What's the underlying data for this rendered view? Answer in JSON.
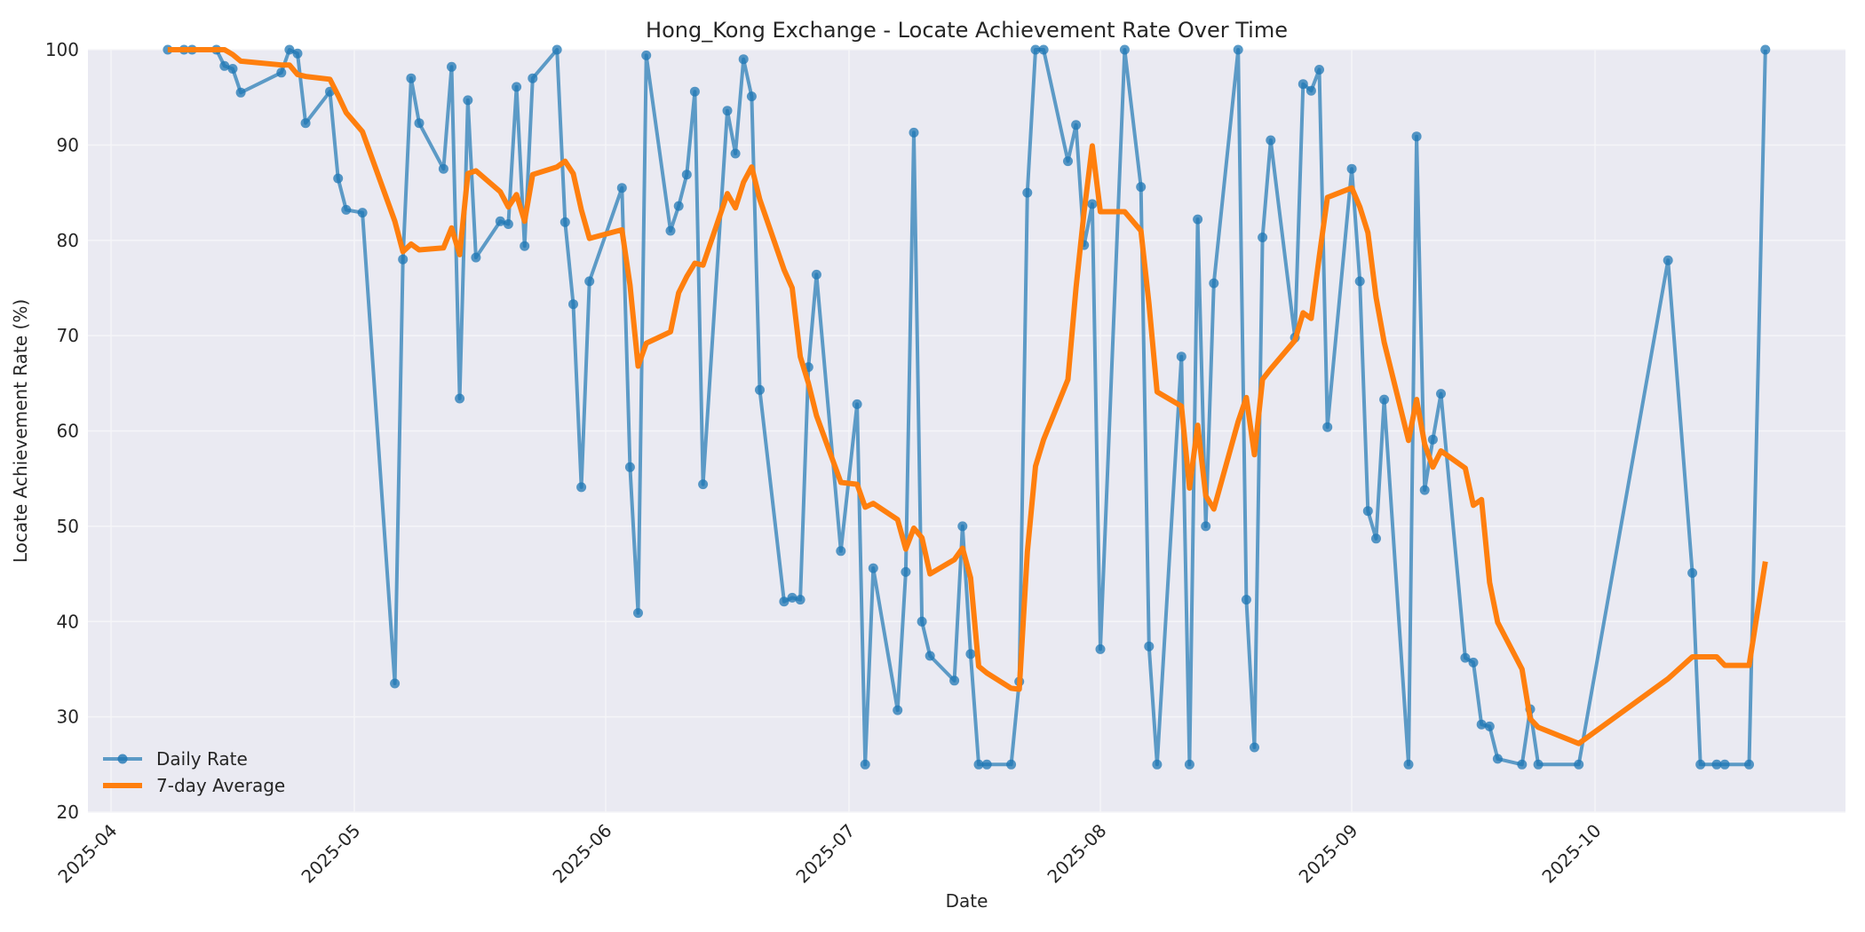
{
  "chart_data": {
    "type": "line",
    "title": "Hong_Kong Exchange - Locate Achievement Rate Over Time",
    "xlabel": "Date",
    "ylabel": "Locate Achievement Rate (%)",
    "ylim": [
      20,
      100
    ],
    "yticks": [
      20,
      30,
      40,
      50,
      60,
      70,
      80,
      90,
      100
    ],
    "xlim": [
      "2025-03-28",
      "2025-10-31"
    ],
    "xticks": [
      "2025-04",
      "2025-05",
      "2025-06",
      "2025-07",
      "2025-08",
      "2025-09",
      "2025-10"
    ],
    "xtick_dates": [
      "2025-04-01",
      "2025-05-01",
      "2025-06-01",
      "2025-07-01",
      "2025-08-01",
      "2025-09-01",
      "2025-10-01"
    ],
    "grid": true,
    "legend_position": "lower left",
    "series": [
      {
        "name": "Daily Rate",
        "color": "#1f77b4",
        "style": "line-with-markers",
        "x": [
          "2025-04-08",
          "2025-04-10",
          "2025-04-11",
          "2025-04-14",
          "2025-04-15",
          "2025-04-16",
          "2025-04-17",
          "2025-04-22",
          "2025-04-23",
          "2025-04-24",
          "2025-04-25",
          "2025-04-28",
          "2025-04-29",
          "2025-04-30",
          "2025-05-02",
          "2025-05-06",
          "2025-05-07",
          "2025-05-08",
          "2025-05-09",
          "2025-05-12",
          "2025-05-13",
          "2025-05-14",
          "2025-05-15",
          "2025-05-16",
          "2025-05-19",
          "2025-05-20",
          "2025-05-21",
          "2025-05-22",
          "2025-05-23",
          "2025-05-26",
          "2025-05-27",
          "2025-05-28",
          "2025-05-29",
          "2025-05-30",
          "2025-06-03",
          "2025-06-04",
          "2025-06-05",
          "2025-06-06",
          "2025-06-09",
          "2025-06-10",
          "2025-06-11",
          "2025-06-12",
          "2025-06-13",
          "2025-06-16",
          "2025-06-17",
          "2025-06-18",
          "2025-06-19",
          "2025-06-20",
          "2025-06-23",
          "2025-06-24",
          "2025-06-25",
          "2025-06-26",
          "2025-06-27",
          "2025-06-30",
          "2025-07-02",
          "2025-07-03",
          "2025-07-04",
          "2025-07-07",
          "2025-07-08",
          "2025-07-09",
          "2025-07-10",
          "2025-07-11",
          "2025-07-14",
          "2025-07-15",
          "2025-07-16",
          "2025-07-17",
          "2025-07-18",
          "2025-07-21",
          "2025-07-22",
          "2025-07-23",
          "2025-07-24",
          "2025-07-25",
          "2025-07-28",
          "2025-07-29",
          "2025-07-30",
          "2025-07-31",
          "2025-08-01",
          "2025-08-04",
          "2025-08-06",
          "2025-08-07",
          "2025-08-08",
          "2025-08-11",
          "2025-08-12",
          "2025-08-13",
          "2025-08-14",
          "2025-08-15",
          "2025-08-18",
          "2025-08-19",
          "2025-08-20",
          "2025-08-21",
          "2025-08-22",
          "2025-08-25",
          "2025-08-26",
          "2025-08-27",
          "2025-08-28",
          "2025-08-29",
          "2025-09-01",
          "2025-09-02",
          "2025-09-03",
          "2025-09-04",
          "2025-09-05",
          "2025-09-08",
          "2025-09-09",
          "2025-09-10",
          "2025-09-11",
          "2025-09-12",
          "2025-09-15",
          "2025-09-16",
          "2025-09-17",
          "2025-09-18",
          "2025-09-19",
          "2025-09-22",
          "2025-09-23",
          "2025-09-24",
          "2025-09-29",
          "2025-10-10",
          "2025-10-13",
          "2025-10-14",
          "2025-10-16",
          "2025-10-17",
          "2025-10-20",
          "2025-10-22"
        ],
        "values": [
          100,
          100,
          100,
          100,
          98.3,
          98.0,
          95.5,
          97.6,
          100,
          99.6,
          92.3,
          95.6,
          86.5,
          83.2,
          82.9,
          33.5,
          78.0,
          97.0,
          92.3,
          87.5,
          98.2,
          63.4,
          94.7,
          78.2,
          82.0,
          81.7,
          96.1,
          79.4,
          97.0,
          100,
          81.9,
          73.3,
          54.1,
          75.7,
          85.5,
          56.2,
          40.9,
          99.4,
          81.0,
          83.6,
          86.9,
          95.6,
          54.4,
          93.6,
          89.1,
          99.0,
          95.1,
          64.3,
          42.1,
          42.5,
          42.3,
          66.7,
          76.4,
          47.4,
          62.8,
          25.0,
          45.6,
          30.7,
          45.2,
          91.3,
          40.0,
          36.4,
          33.8,
          50.0,
          36.6,
          25.0,
          25.0,
          25.0,
          33.7,
          85.0,
          100,
          100,
          88.3,
          92.1,
          79.5,
          83.8,
          37.1,
          100,
          85.6,
          37.4,
          25.0,
          67.8,
          25.0,
          82.2,
          50.0,
          75.5,
          100,
          42.3,
          26.8,
          80.3,
          90.5,
          69.8,
          96.4,
          95.7,
          97.9,
          60.4,
          87.5,
          75.7,
          51.6,
          48.7,
          63.3,
          25.0,
          90.9,
          53.8,
          59.1,
          63.9,
          36.2,
          35.7,
          29.2,
          29.0,
          25.6,
          25.0,
          30.8,
          25.0,
          25.0,
          77.9,
          45.1,
          25.0,
          25.0,
          25.0,
          25.0,
          100
        ]
      },
      {
        "name": "7-day Average",
        "color": "#ff7f0e",
        "style": "thick-line",
        "x": [
          "2025-04-08",
          "2025-04-10",
          "2025-04-11",
          "2025-04-14",
          "2025-04-15",
          "2025-04-16",
          "2025-04-17",
          "2025-04-22",
          "2025-04-23",
          "2025-04-24",
          "2025-04-25",
          "2025-04-28",
          "2025-04-29",
          "2025-04-30",
          "2025-05-02",
          "2025-05-06",
          "2025-05-07",
          "2025-05-08",
          "2025-05-09",
          "2025-05-12",
          "2025-05-13",
          "2025-05-14",
          "2025-05-15",
          "2025-05-16",
          "2025-05-19",
          "2025-05-20",
          "2025-05-21",
          "2025-05-22",
          "2025-05-23",
          "2025-05-26",
          "2025-05-27",
          "2025-05-28",
          "2025-05-29",
          "2025-05-30",
          "2025-06-03",
          "2025-06-04",
          "2025-06-05",
          "2025-06-06",
          "2025-06-09",
          "2025-06-10",
          "2025-06-11",
          "2025-06-12",
          "2025-06-13",
          "2025-06-16",
          "2025-06-17",
          "2025-06-18",
          "2025-06-19",
          "2025-06-20",
          "2025-06-23",
          "2025-06-24",
          "2025-06-25",
          "2025-06-26",
          "2025-06-27",
          "2025-06-30",
          "2025-07-02",
          "2025-07-03",
          "2025-07-04",
          "2025-07-07",
          "2025-07-08",
          "2025-07-09",
          "2025-07-10",
          "2025-07-11",
          "2025-07-14",
          "2025-07-15",
          "2025-07-16",
          "2025-07-17",
          "2025-07-18",
          "2025-07-21",
          "2025-07-22",
          "2025-07-23",
          "2025-07-24",
          "2025-07-25",
          "2025-07-28",
          "2025-07-29",
          "2025-07-30",
          "2025-07-31",
          "2025-08-01",
          "2025-08-04",
          "2025-08-06",
          "2025-08-07",
          "2025-08-08",
          "2025-08-11",
          "2025-08-12",
          "2025-08-13",
          "2025-08-14",
          "2025-08-15",
          "2025-08-18",
          "2025-08-19",
          "2025-08-20",
          "2025-08-21",
          "2025-08-22",
          "2025-08-25",
          "2025-08-26",
          "2025-08-27",
          "2025-08-28",
          "2025-08-29",
          "2025-09-01",
          "2025-09-02",
          "2025-09-03",
          "2025-09-04",
          "2025-09-05",
          "2025-09-08",
          "2025-09-09",
          "2025-09-10",
          "2025-09-11",
          "2025-09-12",
          "2025-09-15",
          "2025-09-16",
          "2025-09-17",
          "2025-09-18",
          "2025-09-19",
          "2025-09-22",
          "2025-09-23",
          "2025-09-24",
          "2025-09-29",
          "2025-10-10",
          "2025-10-13",
          "2025-10-14",
          "2025-10-16",
          "2025-10-17",
          "2025-10-20",
          "2025-10-22"
        ],
        "values": [
          100,
          100,
          100,
          100,
          100,
          99.5,
          98.8,
          98.4,
          98.4,
          97.4,
          97.2,
          96.9,
          95.2,
          93.4,
          91.4,
          82.0,
          78.8,
          79.6,
          79.0,
          79.2,
          81.3,
          78.5,
          87.0,
          87.3,
          85.1,
          83.5,
          84.8,
          82.0,
          86.9,
          87.7,
          88.3,
          87.0,
          83.2,
          80.2,
          81.1,
          75.3,
          66.8,
          69.2,
          70.4,
          74.5,
          76.2,
          77.6,
          77.4,
          84.9,
          83.4,
          86.1,
          87.7,
          84.3,
          76.9,
          75.0,
          67.8,
          65.0,
          61.6,
          54.6,
          54.4,
          52.0,
          52.4,
          50.7,
          47.6,
          49.8,
          48.8,
          45.0,
          46.5,
          47.7,
          44.6,
          35.3,
          34.6,
          33.0,
          32.9,
          47.3,
          56.3,
          59.1,
          65.4,
          75.0,
          83.0,
          89.9,
          83.0,
          83.0,
          81.0,
          73.3,
          64.1,
          62.6,
          54.0,
          60.6,
          53.2,
          51.8,
          61.0,
          63.5,
          57.5,
          65.4,
          66.5,
          69.5,
          72.4,
          71.8,
          78.3,
          84.5,
          85.5,
          83.5,
          80.8,
          74.0,
          69.3,
          59.0,
          63.3,
          58.6,
          56.2,
          57.9,
          56.1,
          52.2,
          52.8,
          44.1,
          39.9,
          35.0,
          29.8,
          28.9,
          27.2,
          34.0,
          36.3,
          36.3,
          36.3,
          35.4,
          35.4,
          46.3
        ]
      }
    ]
  },
  "legend": {
    "items": [
      {
        "label": "Daily Rate",
        "color": "#1f77b4"
      },
      {
        "label": "7-day Average",
        "color": "#ff7f0e"
      }
    ]
  },
  "colors": {
    "plot_background": "#eaeaf2",
    "grid": "#f5f5f8",
    "text": "#262626"
  }
}
